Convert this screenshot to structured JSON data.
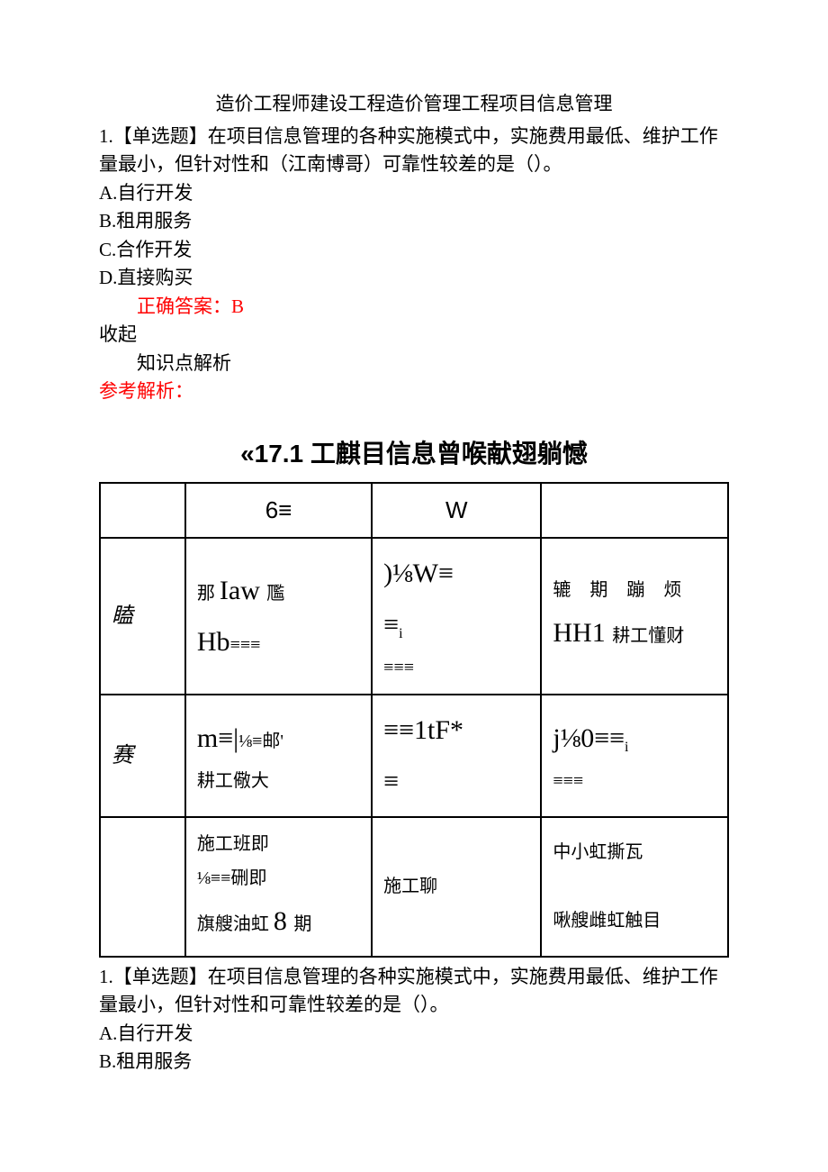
{
  "colors": {
    "text": "#000000",
    "answer": "#ff0000",
    "background": "#ffffff",
    "table_border": "#000000"
  },
  "typography": {
    "body_font": "SimSun",
    "heading_font": "SimHei",
    "body_size_pt": 16,
    "table_title_size_pt": 21
  },
  "title": "造价工程师建设工程造价管理工程项目信息管理",
  "q1": {
    "stem": "1.【单选题】在项目信息管理的各种实施模式中，实施费用最低、维护工作量最小，但针对性和（江南博哥）可靠性较差的是（）。",
    "optA": "A.自行开发",
    "optB": "B.租用服务",
    "optC": "C.合作开发",
    "optD": "D.直接购买",
    "answer": "正确答案：B",
    "collapse": "收起",
    "kpoint": "知识点解析",
    "analysis_label": "参考解析："
  },
  "table": {
    "title": "«17.1 工麒目信息曾喉献翅躺憾",
    "header": {
      "c1": "",
      "c2": "6≡",
      "c3": "W",
      "c4": ""
    },
    "row1": {
      "label": "瞌",
      "c2_html": "<span class='cjk'>那 </span><span class='latin'>Iaw </span><span class='cjk'>尶</span><br><span class='latin'>Hb</span><span class='cjk'>≡≡≡</span>",
      "c3_html": "<span class='latin'>)⅛W≡</span><br><span class='latin'>≡</span><span class='sub'>i</span><br><span class='cjk'>≡≡≡</span>",
      "c4_html": "<span class='cjk spaced'>辘 期 蹦 烦</span><br><span class='latin'>HH1 </span><span class='cjk'>耕工懂财</span>"
    },
    "row2": {
      "label": "赛",
      "c2_html": "<span class='latin'>m≡|</span><span class='cjk'>⅛≡邮'</span><br><span class='cjk'>耕工儆大</span>",
      "c3_html": "<span class='latin'>≡≡1tF*</span><br><span class='latin'>≡</span>",
      "c4_html": "<span class='latin'>j⅛0≡≡</span><span class='sub'>i</span><br><span class='cjk'>≡≡≡</span>"
    },
    "row3": {
      "label": "",
      "c2_html": "<span class='cjk'>施工班即</span><br><span class='cjk'>⅛≡≡硎即</span><br><span class='cjk'>旗艘油虹 </span><span class='latin'>8 </span><span class='cjk'>期</span>",
      "c3_html": "<span class='cjk'>施工聊</span>",
      "c4_html": "<span class='cjk'>中小虹撕瓦</span><br><br><span class='cjk'>啾艘雌虹触目</span>"
    }
  },
  "q2": {
    "stem": "1.【单选题】在项目信息管理的各种实施模式中，实施费用最低、维护工作量最小，但针对性和可靠性较差的是（）。",
    "optA": "A.自行开发",
    "optB": "B.租用服务"
  }
}
